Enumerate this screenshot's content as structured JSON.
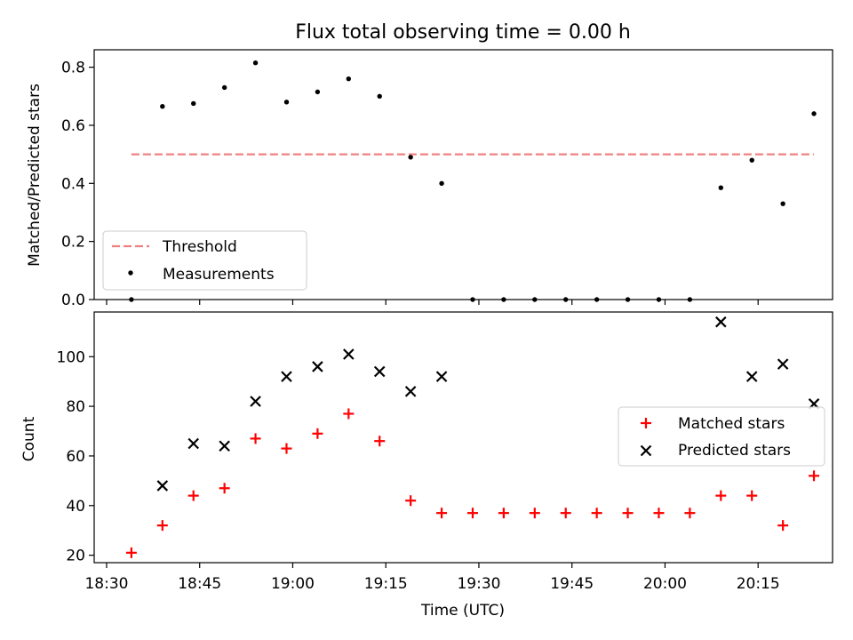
{
  "chart_data": [
    {
      "type": "scatter",
      "title": "Flux total observing time = 0.00 h",
      "xlabel": "",
      "ylabel": "Matched/Predicted stars",
      "xlim": [
        "18:28",
        "20:27"
      ],
      "ylim": [
        0,
        0.86
      ],
      "yticks": [
        0.0,
        0.2,
        0.4,
        0.6,
        0.8
      ],
      "ytick_labels": [
        "0.0",
        "0.2",
        "0.4",
        "0.6",
        "0.8"
      ],
      "xticks": [
        "18:30",
        "18:45",
        "19:00",
        "19:15",
        "19:30",
        "19:45",
        "20:00",
        "20:15"
      ],
      "legend": {
        "placement": "lower-left",
        "entries": [
          "Threshold",
          "Measurements"
        ]
      },
      "threshold": {
        "name": "Threshold",
        "value": 0.5,
        "x_start": "18:34",
        "x_end": "20:24",
        "color": "#f08080"
      },
      "series": [
        {
          "name": "Measurements",
          "color": "#000000",
          "x": [
            "18:34",
            "18:39",
            "18:44",
            "18:49",
            "18:54",
            "18:59",
            "19:04",
            "19:09",
            "19:14",
            "19:19",
            "19:24",
            "19:29",
            "19:34",
            "19:39",
            "19:44",
            "19:49",
            "19:54",
            "19:59",
            "20:04",
            "20:09",
            "20:14",
            "20:19",
            "20:24"
          ],
          "y": [
            0.0,
            0.665,
            0.675,
            0.73,
            0.815,
            0.68,
            0.715,
            0.76,
            0.7,
            0.49,
            0.4,
            0.0,
            0.0,
            0.0,
            0.0,
            0.0,
            0.0,
            0.0,
            0.0,
            0.385,
            0.48,
            0.33,
            0.64
          ]
        }
      ]
    },
    {
      "type": "scatter",
      "title": "",
      "xlabel": "Time (UTC)",
      "ylabel": "Count",
      "xlim": [
        "18:28",
        "20:27"
      ],
      "ylim": [
        17,
        118
      ],
      "yticks": [
        20,
        40,
        60,
        80,
        100
      ],
      "ytick_labels": [
        "20",
        "40",
        "60",
        "80",
        "100"
      ],
      "xticks": [
        "18:30",
        "18:45",
        "19:00",
        "19:15",
        "19:30",
        "19:45",
        "20:00",
        "20:15"
      ],
      "legend": {
        "placement": "center-right",
        "entries": [
          "Matched stars",
          "Predicted stars"
        ]
      },
      "series": [
        {
          "name": "Matched stars",
          "marker": "plus",
          "color": "#ff0000",
          "x": [
            "18:34",
            "18:39",
            "18:44",
            "18:49",
            "18:54",
            "18:59",
            "19:04",
            "19:09",
            "19:14",
            "19:19",
            "19:24",
            "19:29",
            "19:34",
            "19:39",
            "19:44",
            "19:49",
            "19:54",
            "19:59",
            "20:04",
            "20:09",
            "20:14",
            "20:19",
            "20:24"
          ],
          "y": [
            21,
            32,
            44,
            47,
            67,
            63,
            69,
            77,
            66,
            42,
            37,
            37,
            37,
            37,
            37,
            37,
            37,
            37,
            37,
            44,
            44,
            32,
            52
          ]
        },
        {
          "name": "Predicted stars",
          "marker": "x",
          "color": "#000000",
          "x": [
            "18:39",
            "18:44",
            "18:49",
            "18:54",
            "18:59",
            "19:04",
            "19:09",
            "19:14",
            "19:19",
            "19:24",
            "20:09",
            "20:14",
            "20:19",
            "20:24"
          ],
          "y": [
            48,
            65,
            64,
            82,
            92,
            96,
            101,
            94,
            86,
            92,
            114,
            92,
            97,
            81
          ]
        }
      ]
    }
  ]
}
